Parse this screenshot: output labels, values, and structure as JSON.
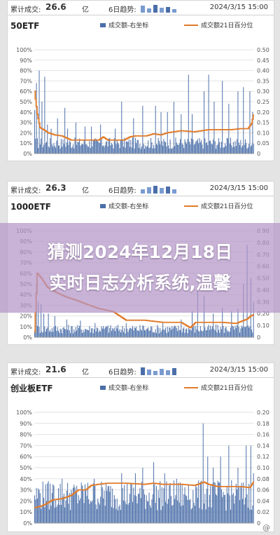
{
  "colors": {
    "bar": "#4a6ea8",
    "line": "#e07b2a",
    "overlay": "#b496c8"
  },
  "overlay": {
    "line1": "猜测2024年12月18日",
    "line2": "实时日志分析系统,温馨"
  },
  "watermark": "@",
  "panels": [
    {
      "header": {
        "label": "累计成交:",
        "value": "26.6",
        "unit": "亿",
        "trend": "6日趋势:",
        "date": "2024/3/15 15:00"
      },
      "chart_data": {
        "type": "bar",
        "title": "50ETF",
        "legend": [
          "成交额-右坐标",
          "成交额21日百分位"
        ],
        "left_ticks": [
          "0%",
          "10%",
          "20%",
          "30%",
          "40%",
          "50%",
          "60%",
          "70%",
          "80%",
          "90%",
          "100%"
        ],
        "right_ticks": [
          "0",
          "0.05",
          "0.10",
          "0.15",
          "0.20",
          "0.25",
          "0.30",
          "0.35",
          "0.40",
          "0.45",
          "0.50"
        ],
        "ylim_left": [
          0,
          100
        ],
        "ylim_right": [
          0,
          0.5
        ],
        "n": 240,
        "volume_base": 0.05,
        "spikes": [
          [
            0,
            0.21
          ],
          [
            2,
            0.34
          ],
          [
            5,
            0.4
          ],
          [
            8,
            0.25
          ],
          [
            11,
            0.37
          ],
          [
            14,
            0.14
          ],
          [
            18,
            0.12
          ],
          [
            25,
            0.17
          ],
          [
            33,
            0.22
          ],
          [
            36,
            0.12
          ],
          [
            45,
            0.15
          ],
          [
            55,
            0.13
          ],
          [
            62,
            0.13
          ],
          [
            72,
            0.14
          ],
          [
            88,
            0.12
          ],
          [
            95,
            0.25
          ],
          [
            108,
            0.17
          ],
          [
            118,
            0.23
          ],
          [
            132,
            0.23
          ],
          [
            138,
            0.2
          ],
          [
            145,
            0.2
          ],
          [
            152,
            0.25
          ],
          [
            160,
            0.19
          ],
          [
            168,
            0.38
          ],
          [
            172,
            0.19
          ],
          [
            185,
            0.3
          ],
          [
            190,
            0.38
          ],
          [
            196,
            0.25
          ],
          [
            205,
            0.35
          ],
          [
            212,
            0.24
          ],
          [
            222,
            0.3
          ],
          [
            228,
            0.32
          ],
          [
            235,
            0.3
          ],
          [
            238,
            0.2
          ]
        ],
        "percentile": [
          [
            0,
            60
          ],
          [
            3,
            38
          ],
          [
            6,
            25
          ],
          [
            10,
            23
          ],
          [
            15,
            20
          ],
          [
            22,
            18
          ],
          [
            30,
            17
          ],
          [
            40,
            13
          ],
          [
            55,
            13
          ],
          [
            70,
            13
          ],
          [
            75,
            16
          ],
          [
            80,
            13
          ],
          [
            90,
            13
          ],
          [
            98,
            13
          ],
          [
            104,
            16
          ],
          [
            110,
            17
          ],
          [
            122,
            17
          ],
          [
            130,
            19
          ],
          [
            138,
            18
          ],
          [
            145,
            20
          ],
          [
            160,
            22
          ],
          [
            175,
            21
          ],
          [
            190,
            23
          ],
          [
            200,
            23
          ],
          [
            215,
            23
          ],
          [
            225,
            24
          ],
          [
            233,
            24
          ],
          [
            237,
            29
          ],
          [
            239,
            37
          ]
        ]
      }
    },
    {
      "header": {
        "label": "累计成交:",
        "value": "26.3",
        "unit": "亿",
        "trend": "6日趋势:",
        "date": "2024/3/15 15:00"
      },
      "chart_data": {
        "type": "bar",
        "title": "1000ETF",
        "legend": [
          "成交额-右坐标",
          "成交额21日百分位"
        ],
        "left_ticks": [
          "0%",
          "10%",
          "20%",
          "30%",
          "40%",
          "50%",
          "60%",
          "70%",
          "80%",
          "90%",
          "100%"
        ],
        "right_ticks": [
          "0",
          "0.10",
          "0.20",
          "0.30",
          "0.40",
          "0.50",
          "0.60",
          "0.70",
          "0.80",
          "0.90"
        ],
        "ylim_left": [
          0,
          100
        ],
        "ylim_right": [
          0,
          0.9
        ],
        "n": 240,
        "volume_base": 0.07,
        "spikes": [
          [
            0,
            0.06
          ],
          [
            2,
            0.45
          ],
          [
            4,
            0.3
          ],
          [
            7,
            0.28
          ],
          [
            10,
            0.2
          ],
          [
            15,
            0.2
          ],
          [
            22,
            0.18
          ],
          [
            35,
            0.15
          ],
          [
            50,
            0.14
          ],
          [
            66,
            0.12
          ],
          [
            80,
            0.1
          ],
          [
            100,
            0.12
          ],
          [
            118,
            0.1
          ],
          [
            140,
            0.12
          ],
          [
            160,
            0.15
          ],
          [
            172,
            0.22
          ],
          [
            178,
            0.4
          ],
          [
            185,
            0.35
          ],
          [
            195,
            0.2
          ],
          [
            205,
            0.25
          ],
          [
            215,
            0.22
          ],
          [
            222,
            0.24
          ],
          [
            228,
            0.45
          ],
          [
            232,
            0.78
          ],
          [
            236,
            0.5
          ],
          [
            239,
            0.3
          ]
        ],
        "percentile": [
          [
            0,
            5
          ],
          [
            3,
            60
          ],
          [
            8,
            55
          ],
          [
            14,
            47
          ],
          [
            24,
            42
          ],
          [
            34,
            38
          ],
          [
            48,
            34
          ],
          [
            60,
            30
          ],
          [
            70,
            27
          ],
          [
            86,
            24
          ],
          [
            100,
            16
          ],
          [
            120,
            16
          ],
          [
            140,
            14
          ],
          [
            160,
            14
          ],
          [
            170,
            9
          ],
          [
            176,
            14
          ],
          [
            190,
            14
          ],
          [
            205,
            14
          ],
          [
            220,
            13
          ],
          [
            232,
            17
          ],
          [
            236,
            20
          ],
          [
            239,
            21
          ]
        ]
      }
    },
    {
      "header": {
        "label": "累计成交:",
        "value": "21.6",
        "unit": "亿",
        "trend": "6日趋势:",
        "date": "2024/3/15 15:00"
      },
      "chart_data": {
        "type": "bar",
        "title": "创业板ETF",
        "legend": [
          "成交额-右坐标",
          "成交额21日百分位"
        ],
        "left_ticks": [
          "0%",
          "10%",
          "20%",
          "30%",
          "40%",
          "50%",
          "60%",
          "70%",
          "80%",
          "90%",
          "100%"
        ],
        "right_ticks": [
          "0",
          "0.02",
          "0.04",
          "0.06",
          "0.08",
          "0.10",
          "0.12",
          "0.14",
          "0.16",
          "0.18",
          "0.20"
        ],
        "ylim_left": [
          0,
          100
        ],
        "ylim_right": [
          0,
          0.2
        ],
        "n": 240,
        "volume_base": 0.05,
        "spikes": [
          [
            0,
            0.05
          ],
          [
            5,
            0.06
          ],
          [
            12,
            0.07
          ],
          [
            20,
            0.07
          ],
          [
            30,
            0.08
          ],
          [
            40,
            0.06
          ],
          [
            55,
            0.07
          ],
          [
            65,
            0.08
          ],
          [
            78,
            0.07
          ],
          [
            95,
            0.09
          ],
          [
            110,
            0.09
          ],
          [
            118,
            0.1
          ],
          [
            130,
            0.11
          ],
          [
            142,
            0.09
          ],
          [
            155,
            0.08
          ],
          [
            168,
            0.07
          ],
          [
            176,
            0.07
          ],
          [
            184,
            0.18
          ],
          [
            189,
            0.12
          ],
          [
            195,
            0.1
          ],
          [
            203,
            0.12
          ],
          [
            212,
            0.14
          ],
          [
            222,
            0.1
          ],
          [
            231,
            0.14
          ],
          [
            236,
            0.14
          ],
          [
            239,
            0.09
          ]
        ],
        "percentile": [
          [
            0,
            14
          ],
          [
            6,
            15
          ],
          [
            12,
            17
          ],
          [
            20,
            21
          ],
          [
            30,
            22
          ],
          [
            40,
            25
          ],
          [
            48,
            30
          ],
          [
            56,
            30
          ],
          [
            62,
            34
          ],
          [
            70,
            35
          ],
          [
            80,
            36
          ],
          [
            100,
            36
          ],
          [
            120,
            35
          ],
          [
            130,
            36
          ],
          [
            140,
            35
          ],
          [
            150,
            35
          ],
          [
            160,
            35
          ],
          [
            175,
            34
          ],
          [
            185,
            37
          ],
          [
            190,
            35
          ],
          [
            200,
            33
          ],
          [
            210,
            33
          ],
          [
            225,
            33
          ],
          [
            235,
            32
          ],
          [
            239,
            37
          ]
        ]
      }
    }
  ]
}
